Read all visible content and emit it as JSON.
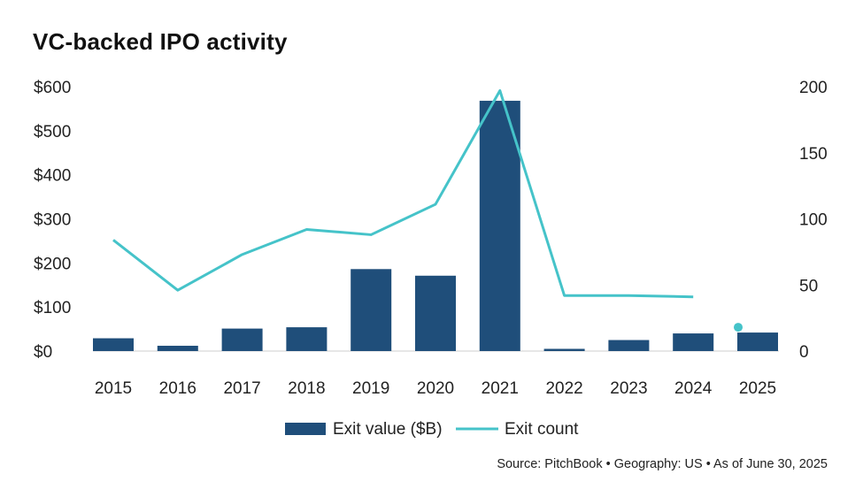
{
  "title": "VC-backed IPO activity",
  "source": "Source: PitchBook  •  Geography: US  •  As of June 30, 2025",
  "colors": {
    "bar": "#1F4E7A",
    "line": "#45C3C9"
  },
  "chart_data": {
    "type": "bar",
    "title": "VC-backed IPO activity",
    "categories": [
      "2015",
      "2016",
      "2017",
      "2018",
      "2019",
      "2020",
      "2021",
      "2022",
      "2023",
      "2024",
      "2025"
    ],
    "series": [
      {
        "name": "Exit value ($B)",
        "type": "bar",
        "axis": "left",
        "values": [
          29,
          12,
          51,
          54,
          186,
          171,
          568,
          5,
          25,
          40,
          42
        ]
      },
      {
        "name": "Exit count",
        "type": "line",
        "axis": "right",
        "values": [
          84,
          46,
          null,
          92,
          88,
          111,
          197,
          42,
          42,
          41,
          18
        ],
        "note": "2017 point not read (line passes through); 2024 is last connected point; 2025 shown as standalone dot"
      }
    ],
    "left_axis": {
      "ticks": [
        "$0",
        "$100",
        "$200",
        "$300",
        "$400",
        "$500",
        "$600"
      ],
      "range": [
        0,
        600
      ]
    },
    "right_axis": {
      "ticks": [
        "0",
        "50",
        "100",
        "150",
        "200"
      ],
      "range": [
        0,
        200
      ]
    },
    "legend": [
      "Exit value ($B)",
      "Exit count"
    ]
  }
}
